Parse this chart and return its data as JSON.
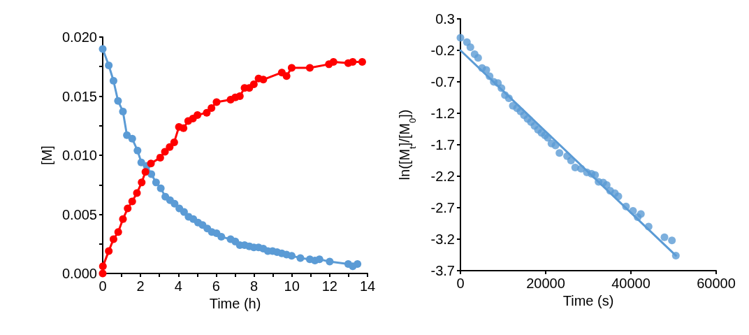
{
  "chart_data": [
    {
      "type": "line",
      "xlabel": "Time (h)",
      "ylabel": "[M]",
      "xlim": [
        0,
        14
      ],
      "xticks": [
        0,
        {
          "value": 1,
          "label": null
        },
        2,
        {
          "value": 3,
          "label": null
        },
        4,
        {
          "value": 5,
          "label": null
        },
        6,
        {
          "value": 7,
          "label": null
        },
        8,
        {
          "value": 9,
          "label": null
        },
        10,
        {
          "value": 11,
          "label": null
        },
        12,
        {
          "value": 13,
          "label": null
        },
        14
      ],
      "ylim": [
        0,
        0.02
      ],
      "yticks": [
        {
          "value": 0,
          "label": "0.000"
        },
        {
          "value": 0.0025,
          "label": null
        },
        {
          "value": 0.005,
          "label": "0.005"
        },
        {
          "value": 0.0075,
          "label": null
        },
        {
          "value": 0.01,
          "label": "0.010"
        },
        {
          "value": 0.0125,
          "label": null
        },
        {
          "value": 0.015,
          "label": "0.015"
        },
        {
          "value": 0.0175,
          "label": null
        },
        {
          "value": 0.02,
          "label": "0.020"
        }
      ],
      "marker": "circle",
      "series": [
        {
          "color": "#5b9bd5",
          "x": [
            0,
            0.32,
            0.57,
            0.81,
            1.07,
            1.28,
            1.56,
            1.84,
            2.04,
            2.33,
            2.57,
            2.82,
            3.07,
            3.31,
            3.56,
            3.8,
            4.05,
            4.3,
            4.54,
            4.79,
            5.04,
            5.28,
            5.53,
            5.77,
            6.02,
            6.27,
            6.76,
            7.01,
            7.25,
            7.5,
            7.75,
            7.99,
            8.24,
            8.49,
            8.73,
            8.98,
            9.22,
            9.47,
            9.72,
            9.99,
            10.45,
            10.95,
            11.22,
            11.46,
            12,
            12.98,
            13.22,
            13.47
          ],
          "values": [
            0.019,
            0.0176,
            0.0163,
            0.0146,
            0.0137,
            0.0117,
            0.0114,
            0.0104,
            0.0094,
            0.0091,
            0.0084,
            0.0077,
            0.0072,
            0.0065,
            0.0062,
            0.0059,
            0.0055,
            0.0052,
            0.0048,
            0.0046,
            0.0043,
            0.0041,
            0.0038,
            0.0035,
            0.0034,
            0.0031,
            0.0029,
            0.0027,
            0.0024,
            0.0024,
            0.0023,
            0.0022,
            0.0022,
            0.0021,
            0.0019,
            0.0019,
            0.0018,
            0.0017,
            0.0016,
            0.0015,
            0.0013,
            0.0012,
            0.0011,
            0.0012,
            0.001,
            0.0008,
            0.0006,
            0.0008
          ]
        },
        {
          "color": "#ff0000",
          "x": [
            0,
            0.01,
            0.32,
            0.57,
            0.82,
            1.07,
            1.32,
            1.56,
            1.81,
            2.06,
            2.26,
            2.55,
            3.04,
            3.29,
            3.54,
            3.78,
            4.03,
            4.27,
            4.52,
            4.77,
            5.01,
            5.5,
            5.75,
            6.02,
            6.76,
            7.01,
            7.25,
            7.5,
            7.75,
            7.99,
            8.24,
            8.49,
            9.47,
            9.72,
            9.99,
            10.95,
            11.96,
            12.2,
            12.98,
            13.22,
            13.72
          ],
          "values": [
            0,
            0.0006,
            0.0019,
            0.0029,
            0.0035,
            0.0046,
            0.0055,
            0.0061,
            0.0068,
            0.0077,
            0.0086,
            0.0093,
            0.0098,
            0.0103,
            0.0107,
            0.0111,
            0.0124,
            0.0123,
            0.0129,
            0.0131,
            0.0134,
            0.0136,
            0.014,
            0.0145,
            0.0147,
            0.0149,
            0.015,
            0.0157,
            0.0157,
            0.016,
            0.0165,
            0.0164,
            0.017,
            0.0167,
            0.0174,
            0.0174,
            0.0177,
            0.0179,
            0.0178,
            0.0179,
            0.0179
          ]
        }
      ]
    },
    {
      "type": "scatter",
      "xlabel": "Time (s)",
      "ylabel": "ln([M$_{t}$]/[M$_{0}$])",
      "xlim": [
        0,
        60000
      ],
      "xticks": [
        0,
        20000,
        40000,
        60000
      ],
      "ylim": [
        -3.7,
        0.3
      ],
      "yticks": [
        -3.7,
        -3.2,
        -2.7,
        -2.2,
        -1.7,
        -1.2,
        -0.7,
        -0.2,
        0.3
      ],
      "marker": "circle",
      "series": [
        {
          "color": "#5b9bd5",
          "x": [
            0,
            1520,
            2340,
            3330,
            4150,
            5080,
            6070,
            6840,
            7820,
            8800,
            9620,
            10440,
            11360,
            12300,
            13280,
            14100,
            14920,
            15740,
            16560,
            17380,
            18200,
            19020,
            19840,
            20490,
            21360,
            22300,
            23230,
            25030,
            25950,
            26930,
            28310,
            29670,
            30770,
            31590,
            32410,
            33490,
            34310,
            35130,
            36230,
            37050,
            38850,
            40490,
            41590,
            42340,
            44150,
            47870,
            49620,
            50540
          ],
          "values": [
            0,
            -0.07,
            -0.15,
            -0.26,
            -0.32,
            -0.48,
            -0.51,
            -0.61,
            -0.7,
            -0.72,
            -0.8,
            -0.91,
            -0.96,
            -1.08,
            -1.12,
            -1.17,
            -1.23,
            -1.29,
            -1.34,
            -1.4,
            -1.46,
            -1.51,
            -1.55,
            -1.59,
            -1.68,
            -1.71,
            -1.83,
            -1.88,
            -1.95,
            -2.06,
            -2.08,
            -2.14,
            -2.16,
            -2.18,
            -2.29,
            -2.3,
            -2.34,
            -2.43,
            -2.47,
            -2.52,
            -2.68,
            -2.75,
            -2.85,
            -2.8,
            -3,
            -3.17,
            -3.22,
            -3.46
          ]
        },
        {
          "type": "line",
          "marker": "none",
          "color": "#5b9bd5",
          "x": [
            0,
            50540
          ],
          "values": [
            -0.2,
            -3.46
          ]
        }
      ]
    }
  ]
}
